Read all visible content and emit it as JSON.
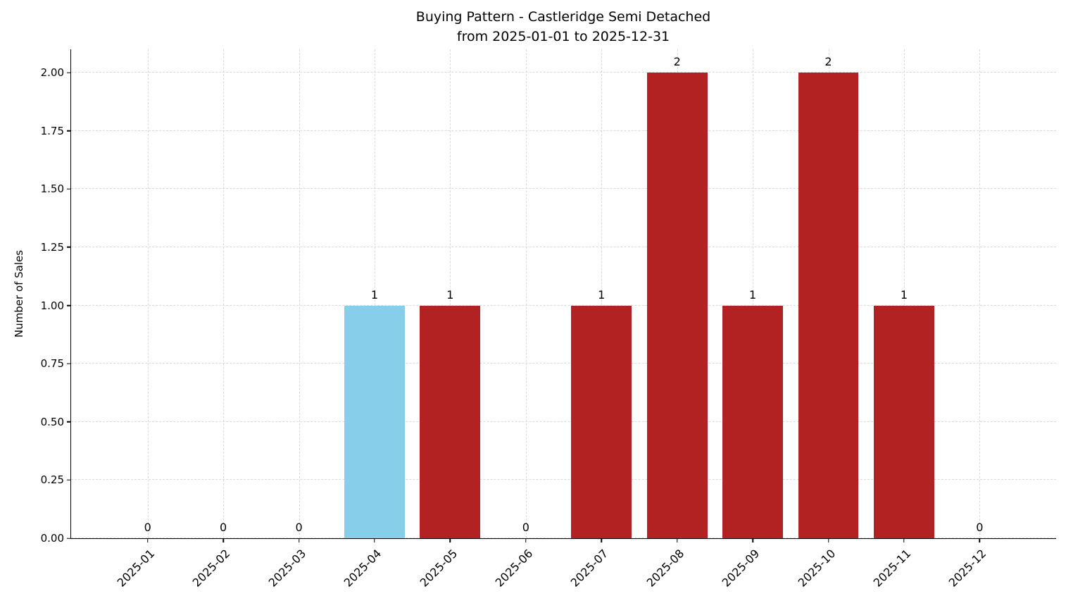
{
  "chart_data": {
    "type": "bar",
    "title": "Buying Pattern - Castleridge Semi Detached",
    "subtitle": "from 2025-01-01 to 2025-12-31",
    "xlabel": "",
    "ylabel": "Number of Sales",
    "categories": [
      "2025-01",
      "2025-02",
      "2025-03",
      "2025-04",
      "2025-05",
      "2025-06",
      "2025-07",
      "2025-08",
      "2025-09",
      "2025-10",
      "2025-11",
      "2025-12"
    ],
    "values": [
      0,
      0,
      0,
      1,
      1,
      0,
      1,
      2,
      1,
      2,
      1,
      0
    ],
    "value_labels": [
      "0",
      "0",
      "0",
      "1",
      "1",
      "0",
      "1",
      "2",
      "1",
      "2",
      "1",
      "0"
    ],
    "highlighted_category": "2025-04",
    "bar_color": "#b22222",
    "highlight_color": "#87ceeb",
    "ylim": [
      0,
      2.1
    ],
    "yticks": [
      0.0,
      0.25,
      0.5,
      0.75,
      1.0,
      1.25,
      1.5,
      1.75,
      2.0
    ],
    "grid": "dashed",
    "legend": "none"
  }
}
